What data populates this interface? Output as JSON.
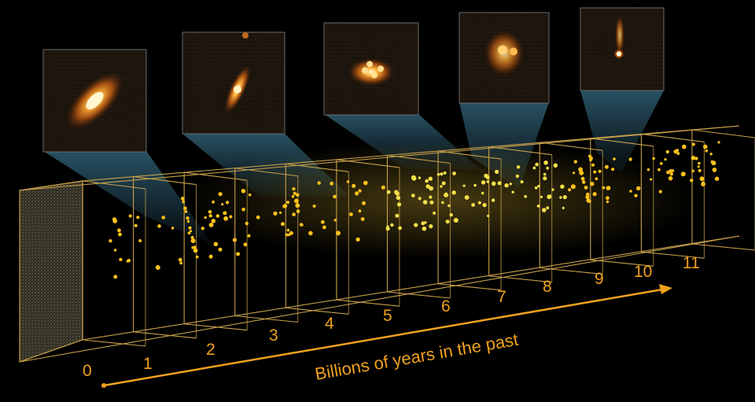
{
  "axis": {
    "title": "Billions of years in the past",
    "ticks": [
      "0",
      "1",
      "2",
      "3",
      "4",
      "5",
      "6",
      "7",
      "8",
      "9",
      "10",
      "11"
    ]
  },
  "insets": [
    {
      "name": "galaxy-inset-1",
      "shape": "large-spiral"
    },
    {
      "name": "galaxy-inset-2",
      "shape": "spiral"
    },
    {
      "name": "galaxy-inset-3",
      "shape": "clumpy"
    },
    {
      "name": "galaxy-inset-4",
      "shape": "irregular"
    },
    {
      "name": "galaxy-inset-5",
      "shape": "compact"
    }
  ],
  "colors": {
    "axis": "#f0a21e",
    "box_lines": "#c8a04a",
    "beam": "#5ab4dc",
    "dots": "#ffc21a",
    "galaxy": "#ff8c1a"
  }
}
